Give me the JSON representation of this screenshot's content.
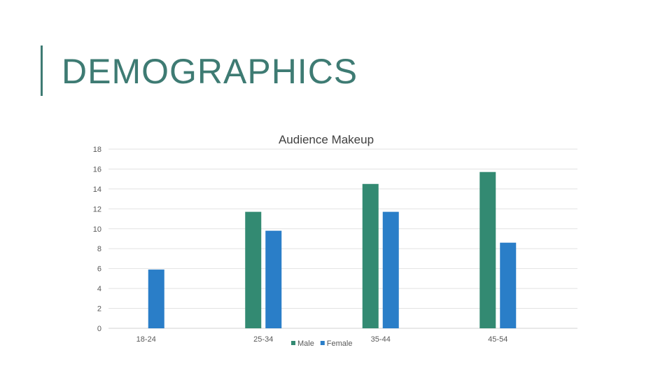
{
  "slide": {
    "title": "DEMOGRAPHICS"
  },
  "chart_data": {
    "type": "bar",
    "title": "Audience Makeup",
    "categories": [
      "18-24",
      "25-34",
      "35-44",
      "45-54"
    ],
    "series": [
      {
        "name": "Male",
        "color": "#338a72",
        "values": [
          0,
          11.7,
          14.5,
          15.7
        ]
      },
      {
        "name": "Female",
        "color": "#2a7ec8",
        "values": [
          5.9,
          9.8,
          11.7,
          8.6
        ]
      }
    ],
    "ylim": [
      0,
      18
    ],
    "yticks": [
      0,
      2,
      4,
      6,
      8,
      10,
      12,
      14,
      16,
      18
    ],
    "grid": true,
    "legend": "bottom-center",
    "xlabel": "",
    "ylabel": ""
  }
}
